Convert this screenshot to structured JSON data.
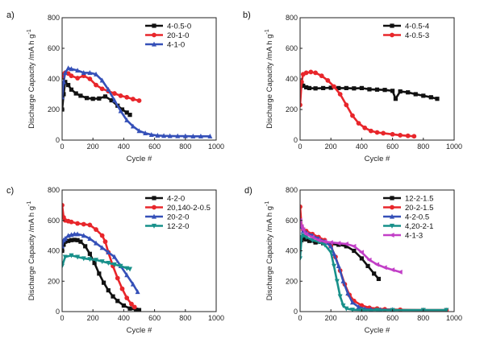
{
  "chart_data": [
    {
      "type": "line",
      "panel_label": "a)",
      "xlabel": "Cycle #",
      "ylabel": "Discharge Capacity /mA h g",
      "ylabel_sup": "-1",
      "xlim": [
        0,
        1000
      ],
      "ylim": [
        0,
        800
      ],
      "xticks": [
        0,
        200,
        400,
        600,
        800,
        1000
      ],
      "yticks": [
        0,
        200,
        400,
        600,
        800
      ],
      "legend_position": "top-right",
      "series": [
        {
          "name": "4-0.5-0",
          "color": "#111111",
          "marker": "square",
          "x": [
            0,
            10,
            20,
            40,
            60,
            90,
            120,
            160,
            200,
            240,
            280,
            320,
            360,
            390,
            420,
            440
          ],
          "y": [
            200,
            300,
            380,
            360,
            330,
            305,
            290,
            275,
            270,
            272,
            285,
            260,
            225,
            200,
            180,
            165
          ]
        },
        {
          "name": "20-1-0",
          "color": "#e8262b",
          "marker": "circle",
          "x": [
            0,
            10,
            20,
            40,
            60,
            100,
            140,
            180,
            220,
            260,
            300,
            340,
            380,
            420,
            460,
            500
          ],
          "y": [
            410,
            430,
            440,
            435,
            420,
            405,
            420,
            400,
            360,
            335,
            320,
            305,
            290,
            280,
            268,
            258
          ]
        },
        {
          "name": "4-1-0",
          "color": "#3550b8",
          "marker": "triangle",
          "x": [
            0,
            10,
            20,
            40,
            60,
            100,
            140,
            180,
            220,
            260,
            300,
            340,
            380,
            420,
            460,
            500,
            540,
            580,
            620,
            660,
            700,
            750,
            800,
            850,
            900,
            960
          ],
          "y": [
            280,
            380,
            440,
            470,
            465,
            455,
            440,
            440,
            430,
            390,
            330,
            260,
            190,
            130,
            90,
            60,
            45,
            35,
            30,
            28,
            27,
            26,
            26,
            25,
            25,
            25
          ]
        }
      ]
    },
    {
      "type": "line",
      "panel_label": "b)",
      "xlabel": "Cycle #",
      "ylabel": "Discharge Capacity /mA h g",
      "ylabel_sup": "-1",
      "xlim": [
        0,
        1000
      ],
      "ylim": [
        0,
        800
      ],
      "xticks": [
        0,
        200,
        400,
        600,
        800,
        1000
      ],
      "yticks": [
        0,
        200,
        400,
        600,
        800
      ],
      "legend_position": "top-right",
      "series": [
        {
          "name": "4-0.5-4",
          "color": "#111111",
          "marker": "square",
          "x": [
            0,
            10,
            20,
            40,
            60,
            100,
            150,
            200,
            250,
            300,
            350,
            400,
            450,
            500,
            550,
            600,
            620,
            650,
            700,
            750,
            800,
            850,
            890
          ],
          "y": [
            350,
            360,
            355,
            345,
            340,
            338,
            340,
            342,
            340,
            340,
            338,
            340,
            332,
            330,
            328,
            322,
            270,
            318,
            312,
            300,
            290,
            280,
            270
          ]
        },
        {
          "name": "4-0.5-3",
          "color": "#e8262b",
          "marker": "circle",
          "x": [
            0,
            10,
            20,
            40,
            70,
            100,
            140,
            180,
            220,
            260,
            300,
            340,
            380,
            420,
            460,
            500,
            540,
            600,
            650,
            700,
            740
          ],
          "y": [
            230,
            380,
            430,
            440,
            445,
            440,
            420,
            390,
            350,
            300,
            230,
            160,
            110,
            80,
            60,
            50,
            45,
            38,
            32,
            28,
            25
          ]
        }
      ]
    },
    {
      "type": "line",
      "panel_label": "c)",
      "xlabel": "Cycle #",
      "ylabel": "Discharge Capacity /mA h g",
      "ylabel_sup": "-1",
      "xlim": [
        0,
        1000
      ],
      "ylim": [
        0,
        800
      ],
      "xticks": [
        0,
        200,
        400,
        600,
        800,
        1000
      ],
      "yticks": [
        0,
        200,
        400,
        600,
        800
      ],
      "legend_position": "top-right",
      "series": [
        {
          "name": "4-2-0",
          "color": "#111111",
          "marker": "square",
          "x": [
            0,
            10,
            20,
            40,
            60,
            80,
            100,
            120,
            150,
            180,
            210,
            240,
            270,
            300,
            330,
            360,
            400,
            440,
            480,
            500
          ],
          "y": [
            400,
            440,
            460,
            465,
            470,
            472,
            470,
            460,
            430,
            380,
            320,
            250,
            190,
            140,
            100,
            70,
            40,
            20,
            12,
            10
          ]
        },
        {
          "name": "20,140-2-0.5",
          "color": "#e8262b",
          "marker": "circle",
          "x": [
            0,
            10,
            20,
            40,
            60,
            100,
            140,
            180,
            220,
            260,
            280,
            300,
            330,
            360,
            390,
            420,
            450,
            470
          ],
          "y": [
            700,
            620,
            600,
            595,
            590,
            580,
            575,
            570,
            540,
            500,
            460,
            390,
            300,
            220,
            150,
            90,
            50,
            30
          ]
        },
        {
          "name": "20-2-0",
          "color": "#3550b8",
          "marker": "triangle",
          "x": [
            0,
            10,
            20,
            40,
            60,
            80,
            100,
            140,
            180,
            220,
            260,
            300,
            340,
            380,
            420,
            460,
            490
          ],
          "y": [
            430,
            470,
            480,
            500,
            505,
            510,
            510,
            500,
            480,
            450,
            420,
            390,
            360,
            300,
            240,
            180,
            130
          ]
        },
        {
          "name": "12-2-0",
          "color": "#17908a",
          "marker": "triangle-down",
          "x": [
            0,
            20,
            60,
            100,
            140,
            180,
            220,
            260,
            300,
            340,
            380,
            420,
            440
          ],
          "y": [
            300,
            360,
            370,
            360,
            350,
            345,
            340,
            330,
            320,
            310,
            300,
            285,
            280
          ]
        }
      ]
    },
    {
      "type": "line",
      "panel_label": "d)",
      "xlabel": "Cycle #",
      "ylabel": "Discharge Capacity /mA h g",
      "ylabel_sup": "-1",
      "xlim": [
        0,
        1000
      ],
      "ylim": [
        0,
        800
      ],
      "xticks": [
        0,
        200,
        400,
        600,
        800,
        1000
      ],
      "yticks": [
        0,
        200,
        400,
        600,
        800
      ],
      "legend_position": "top-right",
      "series": [
        {
          "name": "12-2-1.5",
          "color": "#111111",
          "marker": "square",
          "x": [
            0,
            10,
            20,
            40,
            60,
            100,
            150,
            200,
            250,
            300,
            350,
            400,
            440,
            480,
            510
          ],
          "y": [
            460,
            470,
            480,
            475,
            465,
            455,
            450,
            445,
            440,
            430,
            400,
            350,
            300,
            250,
            215
          ]
        },
        {
          "name": "20-2-1.5",
          "color": "#e8262b",
          "marker": "circle",
          "x": [
            0,
            10,
            20,
            40,
            80,
            120,
            160,
            200,
            230,
            260,
            290,
            320,
            350,
            400,
            450,
            500,
            550,
            650,
            800,
            950
          ],
          "y": [
            690,
            560,
            540,
            530,
            510,
            490,
            470,
            430,
            360,
            270,
            180,
            110,
            70,
            40,
            25,
            20,
            15,
            12,
            10,
            10
          ]
        },
        {
          "name": "4-2-0.5",
          "color": "#3550b8",
          "marker": "triangle",
          "x": [
            0,
            10,
            20,
            40,
            80,
            120,
            160,
            200,
            220,
            250,
            280,
            310,
            340,
            380,
            420,
            460,
            520,
            600
          ],
          "y": [
            600,
            560,
            530,
            520,
            500,
            480,
            460,
            430,
            380,
            300,
            200,
            120,
            60,
            30,
            18,
            14,
            12,
            12
          ]
        },
        {
          "name": "4,20-2-1",
          "color": "#17908a",
          "marker": "triangle-down",
          "x": [
            0,
            10,
            20,
            40,
            80,
            120,
            160,
            200,
            220,
            240,
            260,
            280,
            300,
            340,
            400,
            500,
            600,
            800,
            950
          ],
          "y": [
            350,
            490,
            500,
            490,
            470,
            460,
            440,
            390,
            300,
            200,
            100,
            40,
            20,
            12,
            10,
            10,
            10,
            10,
            10
          ]
        },
        {
          "name": "4-1-3",
          "color": "#c23fc7",
          "marker": "diamond-left",
          "x": [
            0,
            10,
            20,
            40,
            80,
            120,
            160,
            200,
            250,
            300,
            350,
            400,
            450,
            500,
            550,
            600,
            650
          ],
          "y": [
            600,
            560,
            540,
            510,
            490,
            470,
            460,
            455,
            450,
            445,
            430,
            390,
            340,
            310,
            290,
            275,
            260
          ]
        }
      ]
    }
  ]
}
